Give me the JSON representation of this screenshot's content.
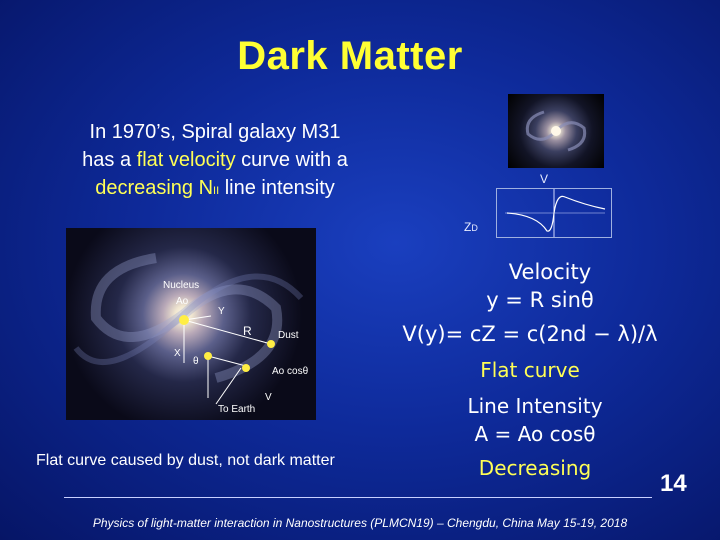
{
  "title": "Dark Matter",
  "intro": {
    "line1": "In 1970’s, Spiral galaxy M31",
    "line2_a": "has a ",
    "line2_b": "flat velocity",
    "line2_c": " curve with a",
    "line3_a": "decreasing N",
    "line3_sub": "II",
    "line3_b": " line intensity"
  },
  "plot": {
    "v_label": "V",
    "z_label": "Z",
    "z_sub": "D"
  },
  "galaxy_labels": {
    "nucleus": "Nucleus",
    "ao": "Ao",
    "y": "Y",
    "r": "R",
    "dust": "Dust",
    "x": "X",
    "theta": "θ",
    "ao_cos": "Ao cosθ",
    "v": "V",
    "to_earth": "To Earth"
  },
  "formulas": {
    "velocity": "Velocity",
    "y_eq": "y = R sinθ",
    "vy_eq": "V(y)= cZ = c(2nd − λ)/λ",
    "flat_curve": "Flat curve",
    "line_intensity": "Line Intensity",
    "a_eq": "A = Ao cosθ",
    "decreasing": "Decreasing"
  },
  "caption": "Flat curve caused by dust, not dark matter",
  "page_number": "14",
  "footer": "Physics of light-matter interaction in Nanostructures (PLMCN19) – Chengdu, China May 15-19, 2018",
  "colors": {
    "title": "#ffff33",
    "highlight": "#ffff55",
    "background": "#0e2a9a"
  }
}
